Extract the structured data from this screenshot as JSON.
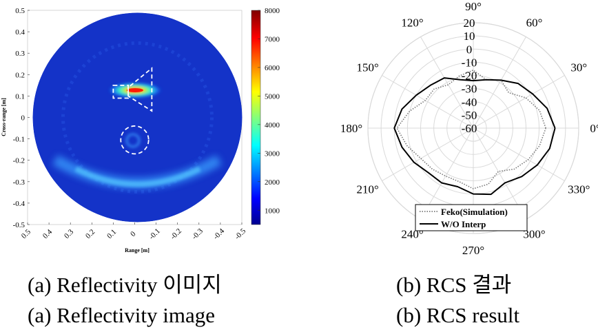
{
  "chart_data": [
    {
      "type": "heatmap",
      "xlabel": "Range [m]",
      "ylabel": "Cross-range [m]",
      "xlim": [
        0.5,
        -0.5
      ],
      "ylim": [
        -0.5,
        0.5
      ],
      "x_ticks": [
        "0.5",
        "0.4",
        "0.3",
        "0.2",
        "0.1",
        "0",
        "-0.1",
        "-0.2",
        "-0.3",
        "-0.4",
        "-0.5"
      ],
      "y_ticks": [
        "0.5",
        "0.4",
        "0.3",
        "0.2",
        "0.1",
        "0",
        "-0.1",
        "-0.2",
        "-0.3",
        "-0.4",
        "-0.5"
      ],
      "colorbar": {
        "min": 500,
        "max": 8000,
        "ticks": [
          "8000",
          "7000",
          "6000",
          "5000",
          "4000",
          "3000",
          "2000",
          "1000"
        ],
        "tick_values": [
          8000,
          7000,
          6000,
          5000,
          4000,
          3000,
          2000,
          1000
        ],
        "colormap": "jet"
      },
      "hotspots": [
        {
          "x": 0.02,
          "y": 0.12,
          "value": 7800,
          "shape": "horizontal-streak"
        },
        {
          "x": 0.0,
          "y": -0.105,
          "value": 2200,
          "shape": "ring"
        },
        {
          "x": 0.0,
          "y": -0.3,
          "value": 1800,
          "shape": "arc"
        }
      ],
      "outlines": [
        {
          "shape": "rect",
          "x_range": [
            0.1,
            0.03
          ],
          "y_range": [
            0.09,
            0.15
          ]
        },
        {
          "shape": "trapezoid",
          "points": [
            [
              0.03,
              0.14
            ],
            [
              0.03,
              0.1
            ],
            [
              -0.08,
              0.03
            ],
            [
              -0.08,
              0.23
            ]
          ]
        },
        {
          "shape": "circle",
          "cx": 0.0,
          "cy": -0.105,
          "r": 0.065
        }
      ],
      "caption_ko": "(a) Reflectivity 이미지",
      "caption_en": "(a) Reflectivity image"
    },
    {
      "type": "polar-line",
      "angle_ticks": [
        "0°",
        "30°",
        "60°",
        "90°",
        "120°",
        "150°",
        "180°",
        "210°",
        "240°",
        "270°",
        "300°",
        "330°"
      ],
      "angle_tick_values": [
        0,
        30,
        60,
        90,
        120,
        150,
        180,
        210,
        240,
        270,
        300,
        330
      ],
      "r_ticks": [
        "20",
        "10",
        "0",
        "-10",
        "-20",
        "-30",
        "-40",
        "-50",
        "-60"
      ],
      "r_tick_values": [
        20,
        10,
        0,
        -10,
        -20,
        -30,
        -40,
        -50,
        -60
      ],
      "rlim": [
        -60,
        20
      ],
      "legend_position": "bottom-left",
      "theta": [
        0,
        15,
        30,
        45,
        60,
        75,
        90,
        105,
        120,
        135,
        150,
        165,
        180,
        195,
        210,
        225,
        240,
        255,
        270,
        285,
        300,
        315,
        330,
        345,
        360
      ],
      "series": [
        {
          "name": "Feko(Simulation)",
          "style": "dotted",
          "color": "#777777",
          "values": [
            -5,
            -8,
            -14,
            -22,
            -18,
            -22,
            -16,
            -19,
            -22,
            -18,
            -18,
            -10,
            -2,
            -8,
            -14,
            -16,
            -18,
            -18,
            -14,
            -16,
            -22,
            -16,
            -12,
            -8,
            -5
          ]
        },
        {
          "name": "W/O Interp",
          "style": "solid",
          "color": "#000000",
          "values": [
            2,
            -2,
            -8,
            -12,
            -18,
            -22,
            -24,
            -22,
            -16,
            -14,
            -10,
            -4,
            0,
            -4,
            -8,
            -12,
            -12,
            -14,
            -10,
            -8,
            -12,
            -8,
            -4,
            0,
            2
          ]
        }
      ],
      "caption_ko": "(b) RCS 결과",
      "caption_en": "(b) RCS result"
    }
  ]
}
